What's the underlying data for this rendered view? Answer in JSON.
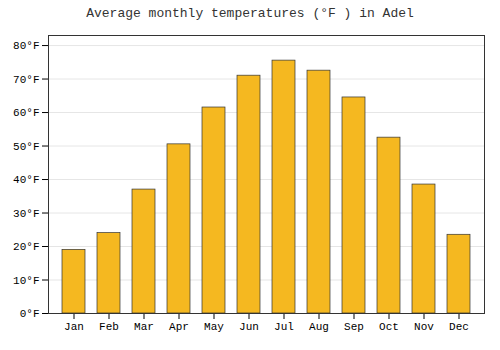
{
  "chart_data": {
    "type": "bar",
    "title": "Average monthly temperatures (°F ) in Adel",
    "categories": [
      "Jan",
      "Feb",
      "Mar",
      "Apr",
      "May",
      "Jun",
      "Jul",
      "Aug",
      "Sep",
      "Oct",
      "Nov",
      "Dec"
    ],
    "values": [
      19,
      24,
      37,
      50.5,
      61.5,
      71,
      75.5,
      72.5,
      64.5,
      52.5,
      38.5,
      23.5
    ],
    "color": "#F5B820",
    "ylim": [
      0,
      83
    ],
    "yticks": [
      {
        "value": 0,
        "label": "0°F"
      },
      {
        "value": 10,
        "label": "10°F"
      },
      {
        "value": 20,
        "label": "20°F"
      },
      {
        "value": 30,
        "label": "30°F"
      },
      {
        "value": 40,
        "label": "40°F"
      },
      {
        "value": 50,
        "label": "50°F"
      },
      {
        "value": 60,
        "label": "60°F"
      },
      {
        "value": 70,
        "label": "70°F"
      },
      {
        "value": 80,
        "label": "80°F"
      }
    ],
    "grid": true
  }
}
